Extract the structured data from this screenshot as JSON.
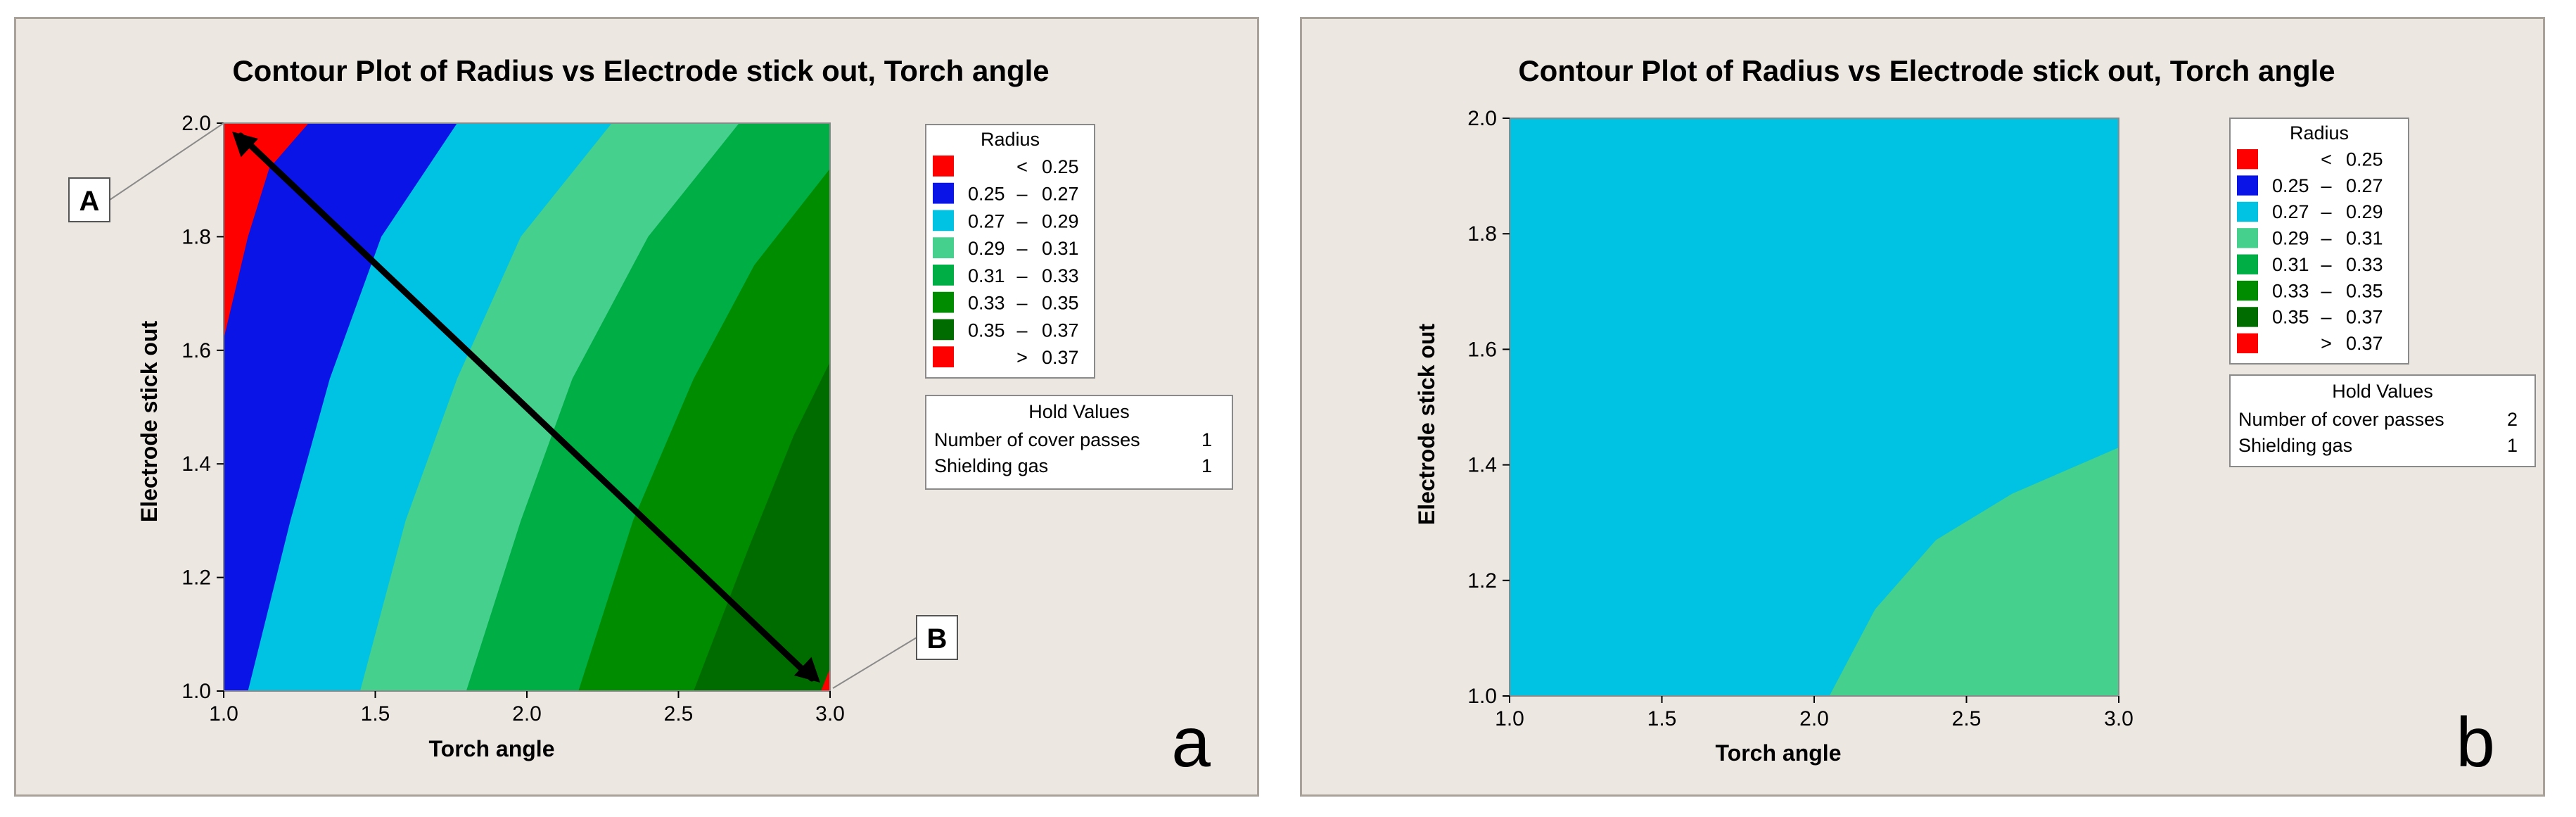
{
  "colors": {
    "lt_0_25": "#ff0000",
    "r_0_25_0_27": "#0a14e6",
    "r_0_27_0_29": "#00c3e3",
    "r_0_29_0_31": "#46d08e",
    "r_0_31_0_33": "#00ae46",
    "r_0_33_0_35": "#008c00",
    "r_0_35_0_37": "#006c00",
    "gt_0_37": "#ff0000"
  },
  "chart_data": [
    {
      "type": "contour",
      "panel_label": "a",
      "title": "Contour Plot of Radius vs Electrode stick out, Torch angle",
      "xlabel": "Torch angle",
      "ylabel": "Electrode stick out",
      "xlim": [
        1.0,
        3.0
      ],
      "ylim": [
        1.0,
        2.0
      ],
      "xticks": [
        "1.0",
        "1.5",
        "2.0",
        "2.5",
        "3.0"
      ],
      "yticks": [
        "1.0",
        "1.2",
        "1.4",
        "1.6",
        "1.8",
        "2.0"
      ],
      "legend_title": "Radius",
      "legend": [
        {
          "lo": "",
          "sep": "<",
          "hi": "0.25",
          "color_key": "lt_0_25"
        },
        {
          "lo": "0.25",
          "sep": "–",
          "hi": "0.27",
          "color_key": "r_0_25_0_27"
        },
        {
          "lo": "0.27",
          "sep": "–",
          "hi": "0.29",
          "color_key": "r_0_27_0_29"
        },
        {
          "lo": "0.29",
          "sep": "–",
          "hi": "0.31",
          "color_key": "r_0_29_0_31"
        },
        {
          "lo": "0.31",
          "sep": "–",
          "hi": "0.33",
          "color_key": "r_0_31_0_33"
        },
        {
          "lo": "0.33",
          "sep": "–",
          "hi": "0.35",
          "color_key": "r_0_33_0_35"
        },
        {
          "lo": "0.35",
          "sep": "–",
          "hi": "0.37",
          "color_key": "r_0_35_0_37"
        },
        {
          "lo": "",
          "sep": ">",
          "hi": "0.37",
          "color_key": "gt_0_37"
        }
      ],
      "hold_title": "Hold Values",
      "hold_values": [
        {
          "label": "Number of cover passes",
          "value": "1"
        },
        {
          "label": "Shielding gas",
          "value": "1"
        }
      ],
      "contour_boundaries": [
        {
          "level": 0.25,
          "points": [
            [
              1.0,
              1.62
            ],
            [
              1.08,
              1.8
            ],
            [
              1.15,
              1.92
            ],
            [
              1.28,
              2.0
            ]
          ]
        },
        {
          "level": 0.27,
          "points": [
            [
              1.08,
              1.0
            ],
            [
              1.22,
              1.3
            ],
            [
              1.35,
              1.55
            ],
            [
              1.52,
              1.8
            ],
            [
              1.77,
              2.0
            ]
          ]
        },
        {
          "level": 0.29,
          "points": [
            [
              1.45,
              1.0
            ],
            [
              1.6,
              1.3
            ],
            [
              1.77,
              1.55
            ],
            [
              1.98,
              1.8
            ],
            [
              2.28,
              2.0
            ]
          ]
        },
        {
          "level": 0.31,
          "points": [
            [
              1.8,
              1.0
            ],
            [
              1.98,
              1.3
            ],
            [
              2.15,
              1.55
            ],
            [
              2.4,
              1.8
            ],
            [
              2.7,
              2.0
            ]
          ]
        },
        {
          "level": 0.33,
          "points": [
            [
              2.17,
              1.0
            ],
            [
              2.35,
              1.3
            ],
            [
              2.55,
              1.55
            ],
            [
              2.75,
              1.75
            ],
            [
              3.0,
              1.92
            ]
          ]
        },
        {
          "level": 0.35,
          "points": [
            [
              2.55,
              1.0
            ],
            [
              2.73,
              1.25
            ],
            [
              2.88,
              1.45
            ],
            [
              3.0,
              1.58
            ]
          ]
        },
        {
          "level": 0.37,
          "points": [
            [
              2.97,
              1.0
            ],
            [
              3.0,
              1.04
            ]
          ]
        }
      ],
      "annotations": [
        {
          "label": "A",
          "x": 1.0,
          "y": 2.0
        },
        {
          "label": "B",
          "x": 3.0,
          "y": 1.0
        }
      ],
      "arrow": {
        "from": [
          1.0,
          2.0
        ],
        "to": [
          3.0,
          1.0
        ]
      }
    },
    {
      "type": "contour",
      "panel_label": "b",
      "title": "Contour Plot of Radius vs Electrode stick out, Torch angle",
      "xlabel": "Torch angle",
      "ylabel": "Electrode stick out",
      "xlim": [
        1.0,
        3.0
      ],
      "ylim": [
        1.0,
        2.0
      ],
      "xticks": [
        "1.0",
        "1.5",
        "2.0",
        "2.5",
        "3.0"
      ],
      "yticks": [
        "1.0",
        "1.2",
        "1.4",
        "1.6",
        "1.8",
        "2.0"
      ],
      "legend_title": "Radius",
      "legend": [
        {
          "lo": "",
          "sep": "<",
          "hi": "0.25",
          "color_key": "lt_0_25"
        },
        {
          "lo": "0.25",
          "sep": "–",
          "hi": "0.27",
          "color_key": "r_0_25_0_27"
        },
        {
          "lo": "0.27",
          "sep": "–",
          "hi": "0.29",
          "color_key": "r_0_27_0_29"
        },
        {
          "lo": "0.29",
          "sep": "–",
          "hi": "0.31",
          "color_key": "r_0_29_0_31"
        },
        {
          "lo": "0.31",
          "sep": "–",
          "hi": "0.33",
          "color_key": "r_0_31_0_33"
        },
        {
          "lo": "0.33",
          "sep": "–",
          "hi": "0.35",
          "color_key": "r_0_33_0_35"
        },
        {
          "lo": "0.35",
          "sep": "–",
          "hi": "0.37",
          "color_key": "r_0_35_0_37"
        },
        {
          "lo": "",
          "sep": ">",
          "hi": "0.37",
          "color_key": "gt_0_37"
        }
      ],
      "hold_title": "Hold Values",
      "hold_values": [
        {
          "label": "Number of cover passes",
          "value": "2"
        },
        {
          "label": "Shielding gas",
          "value": "1"
        }
      ],
      "background_band": "r_0_27_0_29",
      "contour_boundaries": [
        {
          "level": 0.29,
          "points": [
            [
              2.05,
              1.0
            ],
            [
              2.2,
              1.15
            ],
            [
              2.4,
              1.27
            ],
            [
              2.65,
              1.35
            ],
            [
              3.0,
              1.43
            ]
          ]
        }
      ]
    }
  ]
}
